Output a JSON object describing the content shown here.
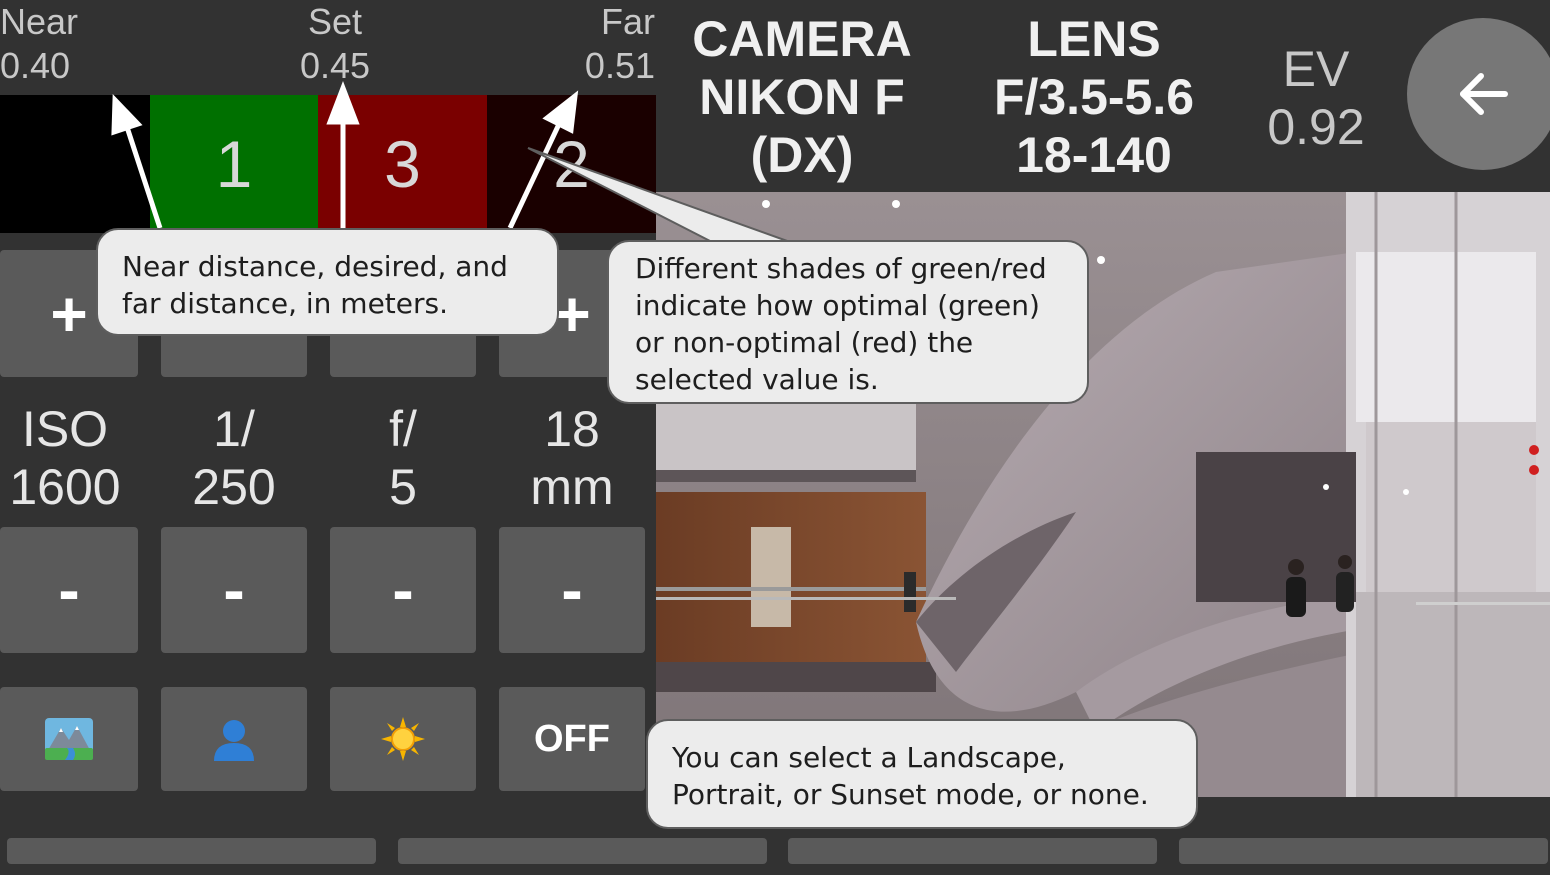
{
  "distances": {
    "near": {
      "label": "Near",
      "value": "0.40"
    },
    "set": {
      "label": "Set",
      "value": "0.45"
    },
    "far": {
      "label": "Far",
      "value": "0.51"
    }
  },
  "focus_bar": {
    "segments": [
      {
        "label": "",
        "color": "#000000"
      },
      {
        "label": "1",
        "color": "#007000"
      },
      {
        "label": "3",
        "color": "#7a0000"
      },
      {
        "label": "2",
        "color": "#1a0000"
      }
    ]
  },
  "header": {
    "camera": [
      "CAMERA",
      "NIKON F",
      "(DX)"
    ],
    "lens": [
      "LENS",
      "F/3.5-5.6",
      "18-140"
    ],
    "ev": {
      "label": "EV",
      "value": "0.92"
    }
  },
  "back_button": {
    "icon": "arrow-left-icon"
  },
  "controls": {
    "plus_label": "+",
    "minus_label": "-",
    "settings": [
      {
        "name": "iso",
        "label": "ISO",
        "value": "1600"
      },
      {
        "name": "shutter",
        "label": "1/",
        "value": "250"
      },
      {
        "name": "aperture",
        "label": "f/",
        "value": "5"
      },
      {
        "name": "focal",
        "label": "18",
        "value": "mm"
      }
    ]
  },
  "modes": {
    "landscape_icon": "landscape-icon",
    "portrait_icon": "portrait-icon",
    "sunset_icon": "sun-icon",
    "off_label": "OFF"
  },
  "callouts": {
    "distances": [
      "Near distance, desired, and",
      "far distance, in meters."
    ],
    "shades": [
      "Different shades of green/red",
      "indicate how optimal (green)",
      "or non-optimal (red) the",
      "selected value is."
    ],
    "modes": [
      "You can select a Landscape,",
      "Portrait, or Sunset mode, or none."
    ]
  },
  "colors": {
    "background": "#323232",
    "button": "#5a5a5a",
    "optimal": "#007000",
    "non_optimal": "#7a0000"
  }
}
